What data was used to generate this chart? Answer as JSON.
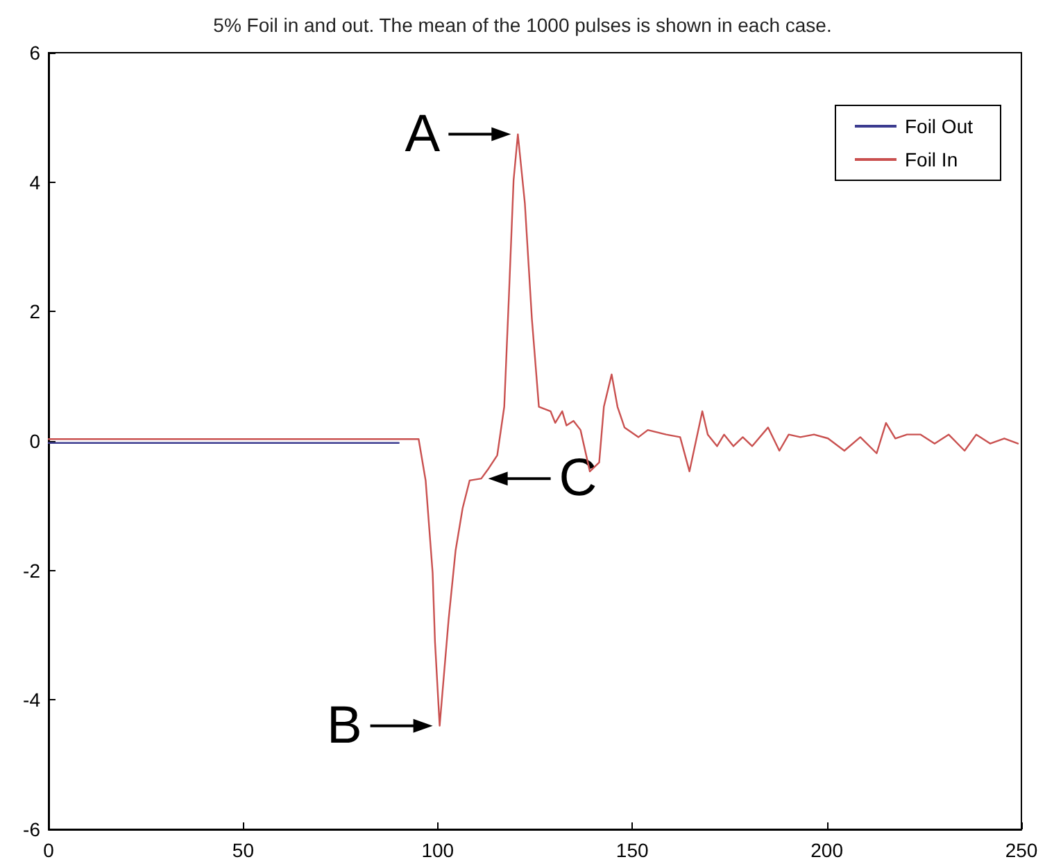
{
  "chart_data": {
    "type": "line",
    "title": "5% Foil in and out. The mean of the 1000 pulses is shown in each case.",
    "x": [
      0,
      10,
      20,
      30,
      40,
      50,
      60,
      70,
      80,
      90,
      95.1,
      96.9,
      98.7,
      99.3,
      100.5,
      102.8,
      104.6,
      106.4,
      108.2,
      111.2,
      112.9,
      115.3,
      117.1,
      118.3,
      119.5,
      120.6,
      122.4,
      124.2,
      126,
      129,
      130.2,
      132,
      133.1,
      134.9,
      136.7,
      139.1,
      141.5,
      142.7,
      144.7,
      146.2,
      148,
      151.6,
      154,
      158.7,
      162.3,
      164.7,
      168,
      169.4,
      171.8,
      173.6,
      176,
      178.4,
      180.8,
      184.9,
      187.8,
      190.2,
      193.2,
      196.7,
      200.3,
      204.5,
      208.6,
      212.8,
      215.2,
      217.6,
      220.6,
      224.1,
      227.7,
      231.3,
      235.4,
      238.4,
      242,
      245.6,
      249.1
    ],
    "series": [
      {
        "name": "Foil Out",
        "color": "#3b3b8f",
        "values": [
          -0.03,
          -0.03,
          -0.03,
          -0.03,
          -0.03,
          -0.03,
          -0.03,
          -0.03,
          -0.03,
          -0.03,
          null,
          null,
          null,
          null,
          null,
          null,
          null,
          null,
          null,
          null,
          null,
          null,
          null,
          null,
          null,
          null,
          null,
          null,
          null,
          null,
          null,
          null,
          null,
          null,
          null,
          null,
          null,
          null,
          null,
          null,
          null,
          null,
          null,
          null,
          null,
          null,
          null,
          null,
          null,
          null,
          null,
          null,
          null,
          null,
          null,
          null,
          null,
          null,
          null,
          null,
          null,
          null,
          null,
          null,
          null,
          null,
          null,
          null,
          null,
          null,
          null,
          null,
          null
        ]
      },
      {
        "name": "Foil In",
        "color": "#c9504f",
        "values": [
          0.03,
          0.03,
          0.03,
          0.03,
          0.03,
          0.03,
          0.03,
          0.03,
          0.03,
          0.03,
          0.03,
          -0.61,
          -2.04,
          -3.1,
          -4.4,
          -2.76,
          -1.69,
          -1.04,
          -0.61,
          -0.58,
          -0.44,
          -0.22,
          0.53,
          2.24,
          4.03,
          4.74,
          3.67,
          1.89,
          0.53,
          0.46,
          0.28,
          0.46,
          0.24,
          0.31,
          0.17,
          -0.47,
          -0.33,
          0.53,
          1.03,
          0.53,
          0.21,
          0.06,
          0.17,
          0.1,
          0.06,
          -0.47,
          0.46,
          0.1,
          -0.08,
          0.1,
          -0.08,
          0.06,
          -0.08,
          0.21,
          -0.15,
          0.1,
          0.06,
          0.1,
          0.04,
          -0.15,
          0.06,
          -0.19,
          0.28,
          0.04,
          0.1,
          0.1,
          -0.04,
          0.1,
          -0.15,
          0.1,
          -0.04,
          0.04,
          -0.04
        ]
      }
    ],
    "annotations": [
      {
        "text": "A",
        "x": 120.6,
        "y": 4.74
      },
      {
        "text": "B",
        "x": 100.5,
        "y": -4.4
      },
      {
        "text": "C",
        "x": 111.2,
        "y": -0.58
      }
    ],
    "xlim": [
      0,
      250
    ],
    "xticks": [
      0,
      50,
      100,
      150,
      200,
      250
    ],
    "ylim": [
      -6,
      6
    ],
    "yticks": [
      -6,
      -4,
      -2,
      0,
      2,
      4,
      6
    ],
    "grid": false,
    "legend": "top right",
    "marker": "none",
    "line_style": "solid"
  }
}
